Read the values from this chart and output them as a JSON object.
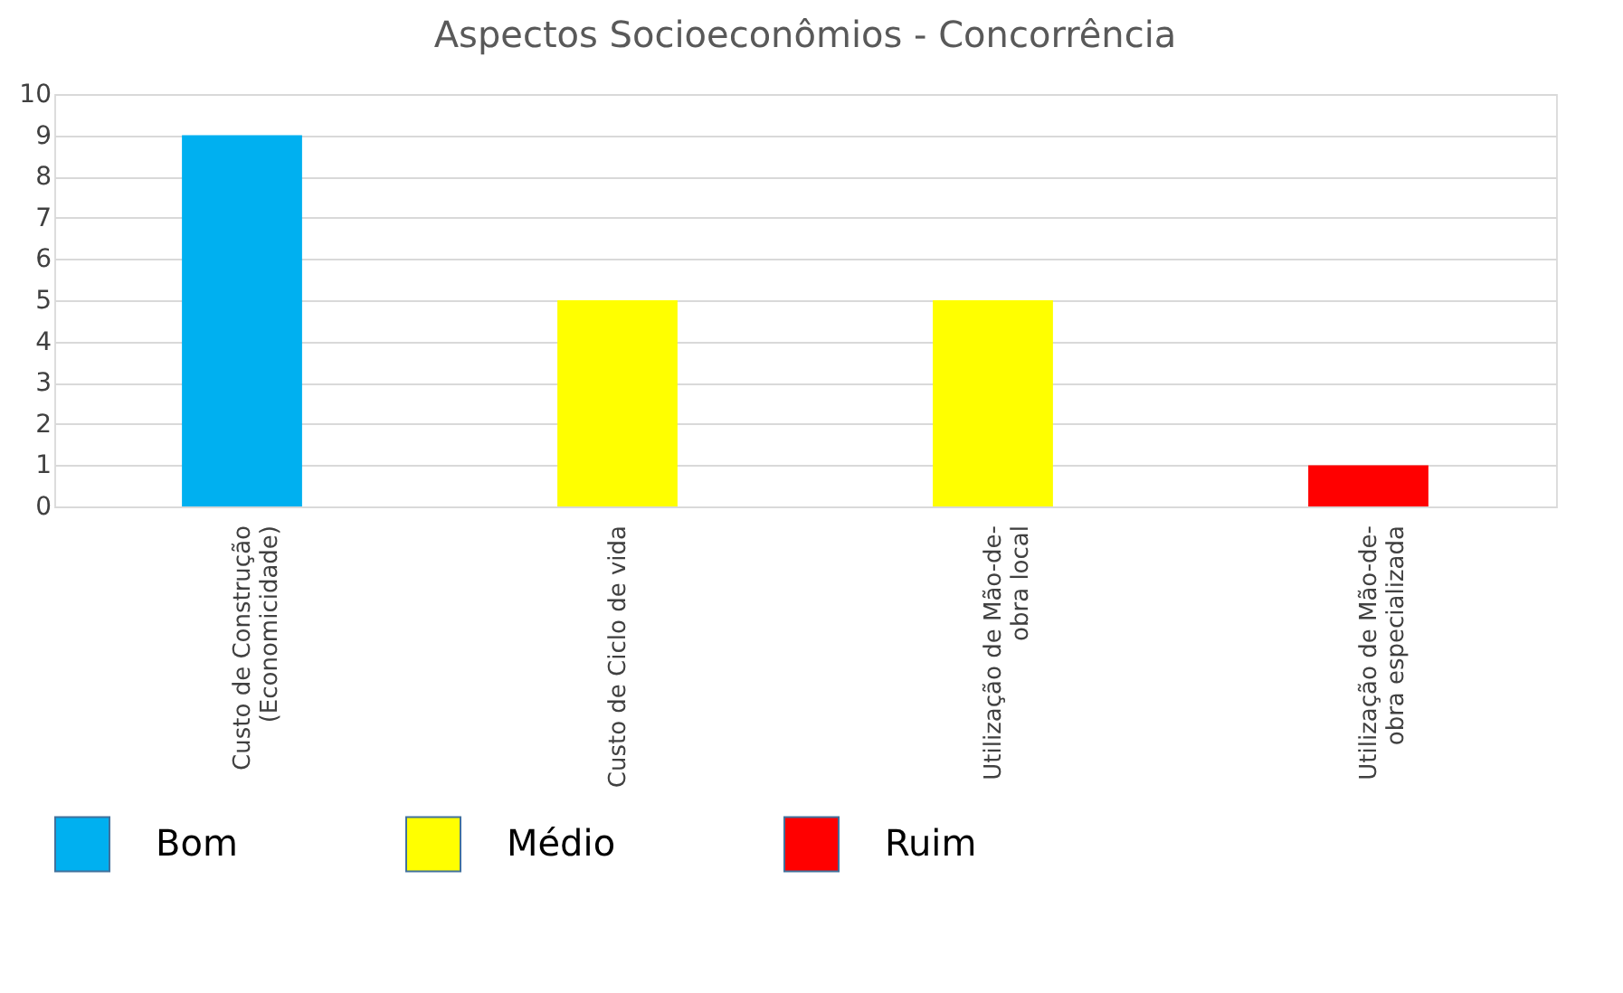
{
  "chart_data": {
    "type": "bar",
    "title": "Aspectos Socioeconômios  - Concorrência",
    "categories": [
      "Custo de Construção (Economicidade)",
      "Custo de Ciclo de vida",
      "Utilização de Mão-de-obra local",
      "Utilização de Mão-de-obra especializada"
    ],
    "series": [
      {
        "name": "Bom",
        "color": "#00b0f0",
        "values": [
          9,
          null,
          null,
          null
        ]
      },
      {
        "name": "Médio",
        "color": "#ffff00",
        "values": [
          null,
          5,
          5,
          null
        ]
      },
      {
        "name": "Ruim",
        "color": "#ff0000",
        "values": [
          null,
          null,
          null,
          1
        ]
      }
    ],
    "ylim": [
      0,
      10
    ],
    "yticks": [
      0,
      1,
      2,
      3,
      4,
      5,
      6,
      7,
      8,
      9,
      10
    ],
    "grid": "y",
    "legend": "bottom"
  }
}
